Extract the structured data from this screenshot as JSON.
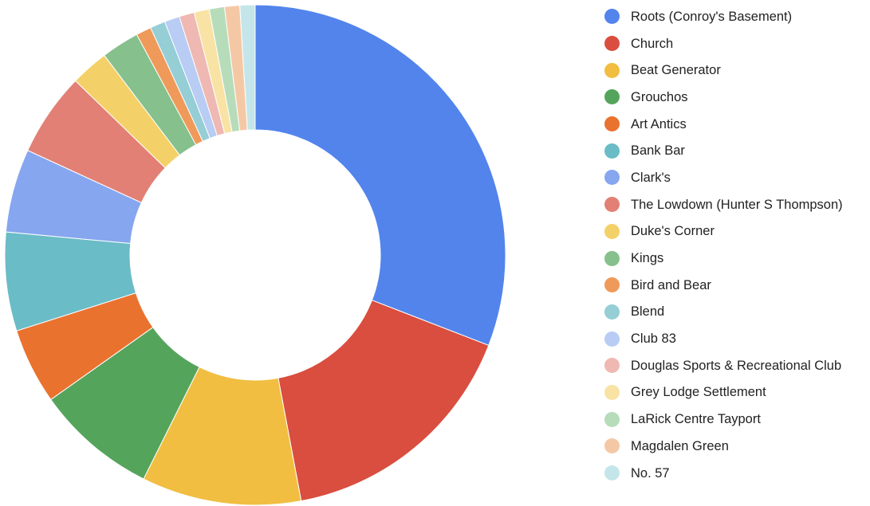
{
  "chart_data": {
    "type": "pie",
    "donut": true,
    "title": "",
    "legend_position": "right",
    "slices": [
      {
        "label": "Roots (Conroy's Basement)",
        "value": 31.5,
        "color": "#5284ec"
      },
      {
        "label": "Church",
        "value": 16.5,
        "color": "#d94e3f"
      },
      {
        "label": "Beat Generator",
        "value": 10.5,
        "color": "#f1be42"
      },
      {
        "label": "Grouchos",
        "value": 8.0,
        "color": "#55a45c"
      },
      {
        "label": "Art Antics",
        "value": 5.0,
        "color": "#ea722f"
      },
      {
        "label": "Bank Bar",
        "value": 6.5,
        "color": "#6abcc6"
      },
      {
        "label": "Clark's",
        "value": 5.5,
        "color": "#86a6ef"
      },
      {
        "label": "The Lowdown (Hunter S Thompson)",
        "value": 5.5,
        "color": "#e28075"
      },
      {
        "label": "Duke's Corner",
        "value": 2.5,
        "color": "#f4d168"
      },
      {
        "label": "Kings",
        "value": 2.5,
        "color": "#86c08c"
      },
      {
        "label": "Bird and Bear",
        "value": 1.0,
        "color": "#ef9a5a"
      },
      {
        "label": "Blend",
        "value": 1.0,
        "color": "#95ced5"
      },
      {
        "label": "Club 83",
        "value": 1.0,
        "color": "#b8ccf4"
      },
      {
        "label": "Douglas Sports & Recreational Club",
        "value": 1.0,
        "color": "#efb8b2"
      },
      {
        "label": "Grey Lodge Settlement",
        "value": 1.0,
        "color": "#f8e3a5"
      },
      {
        "label": "LaRick Centre Tayport",
        "value": 1.0,
        "color": "#b7dcba"
      },
      {
        "label": "Magdalen Green",
        "value": 1.0,
        "color": "#f5c8a5"
      },
      {
        "label": "No. 57",
        "value": 1.0,
        "color": "#c4e6ea"
      }
    ]
  }
}
